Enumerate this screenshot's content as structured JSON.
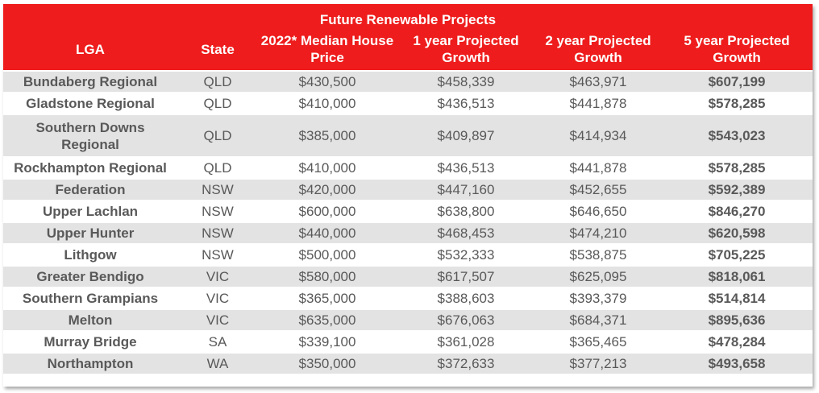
{
  "table": {
    "title": "Future Renewable Projects",
    "columns": [
      "LGA",
      "State",
      "2022* Median House Price",
      "1 year Projected Growth",
      "2 year Projected Growth",
      "5 year Projected Growth"
    ],
    "rows": [
      [
        "Bundaberg Regional",
        "QLD",
        "$430,500",
        "$458,339",
        "$463,971",
        "$607,199"
      ],
      [
        "Gladstone Regional",
        "QLD",
        "$410,000",
        "$436,513",
        "$441,878",
        "$578,285"
      ],
      [
        "Southern Downs Regional",
        "QLD",
        "$385,000",
        "$409,897",
        "$414,934",
        "$543,023"
      ],
      [
        "Rockhampton Regional",
        "QLD",
        "$410,000",
        "$436,513",
        "$441,878",
        "$578,285"
      ],
      [
        "Federation",
        "NSW",
        "$420,000",
        "$447,160",
        "$452,655",
        "$592,389"
      ],
      [
        "Upper Lachlan",
        "NSW",
        "$600,000",
        "$638,800",
        "$646,650",
        "$846,270"
      ],
      [
        "Upper Hunter",
        "NSW",
        "$440,000",
        "$468,453",
        "$474,210",
        "$620,598"
      ],
      [
        "Lithgow",
        "NSW",
        "$500,000",
        "$532,333",
        "$538,875",
        "$705,225"
      ],
      [
        "Greater Bendigo",
        "VIC",
        "$580,000",
        "$617,507",
        "$625,095",
        "$818,061"
      ],
      [
        "Southern Grampians",
        "VIC",
        "$365,000",
        "$388,603",
        "$393,379",
        "$514,814"
      ],
      [
        "Melton",
        "VIC",
        "$635,000",
        "$676,063",
        "$684,371",
        "$895,636"
      ],
      [
        "Murray Bridge",
        "SA",
        "$339,100",
        "$361,028",
        "$365,465",
        "$478,284"
      ],
      [
        "Northampton",
        "WA",
        "$350,000",
        "$372,633",
        "$377,213",
        "$493,658"
      ]
    ]
  },
  "colors": {
    "header_bg": "#ee1c1c",
    "header_text": "#ffffff",
    "row_shaded": "#e3e3e3",
    "row_plain": "#ffffff",
    "body_text": "#595959"
  }
}
